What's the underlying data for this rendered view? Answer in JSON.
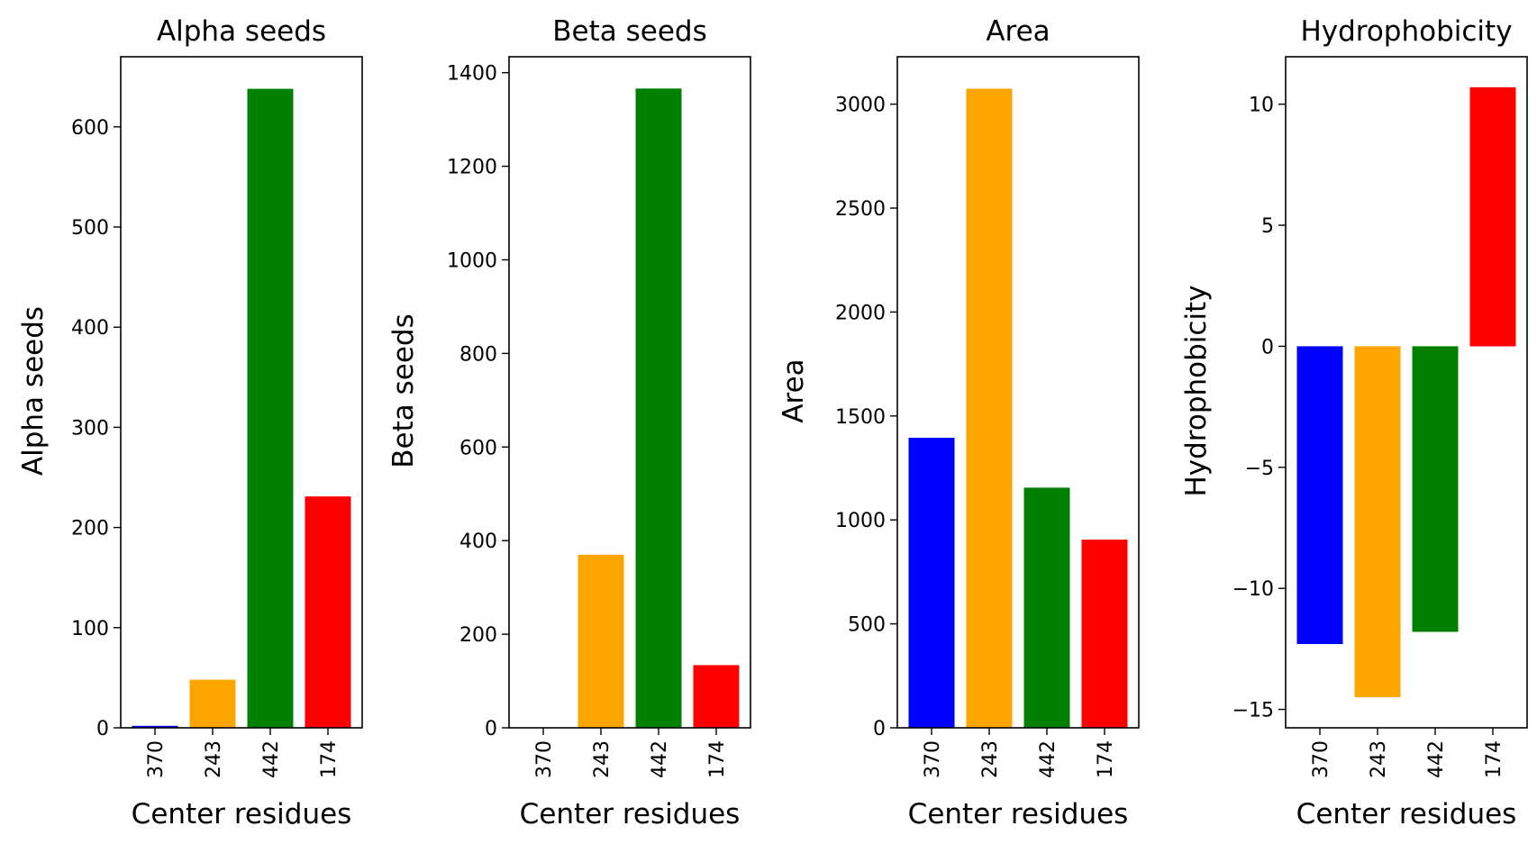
{
  "chart_data": [
    {
      "type": "bar",
      "title": "Alpha seeds",
      "xlabel": "Center residues",
      "ylabel": "Alpha seeds",
      "categories": [
        "370",
        "243",
        "442",
        "174"
      ],
      "values": [
        2,
        48,
        638,
        231
      ],
      "colors": [
        "#0000ff",
        "#ffa500",
        "#008000",
        "#ff0000"
      ],
      "ylim": [
        0,
        670
      ],
      "yticks": [
        0,
        100,
        200,
        300,
        400,
        500,
        600
      ],
      "ytick_labels": [
        "0",
        "100",
        "200",
        "300",
        "400",
        "500",
        "600"
      ],
      "grid": false
    },
    {
      "type": "bar",
      "title": "Beta seeds",
      "xlabel": "Center residues",
      "ylabel": "Beta seeds",
      "categories": [
        "370",
        "243",
        "442",
        "174"
      ],
      "values": [
        0,
        370,
        1366,
        134
      ],
      "colors": [
        "#0000ff",
        "#ffa500",
        "#008000",
        "#ff0000"
      ],
      "ylim": [
        0,
        1434
      ],
      "yticks": [
        0,
        200,
        400,
        600,
        800,
        1000,
        1200,
        1400
      ],
      "ytick_labels": [
        "0",
        "200",
        "400",
        "600",
        "800",
        "1000",
        "1200",
        "1400"
      ],
      "grid": false
    },
    {
      "type": "bar",
      "title": "Area",
      "xlabel": "Center residues",
      "ylabel": "Area",
      "categories": [
        "370",
        "243",
        "442",
        "174"
      ],
      "values": [
        1395,
        3074,
        1155,
        905
      ],
      "colors": [
        "#0000ff",
        "#ffa500",
        "#008000",
        "#ff0000"
      ],
      "ylim": [
        0,
        3228
      ],
      "yticks": [
        0,
        500,
        1000,
        1500,
        2000,
        2500,
        3000
      ],
      "ytick_labels": [
        "0",
        "500",
        "1000",
        "1500",
        "2000",
        "2500",
        "3000"
      ],
      "grid": false
    },
    {
      "type": "bar",
      "title": "Hydrophobicity",
      "xlabel": "Center residues",
      "ylabel": "Hydrophobicity",
      "categories": [
        "370",
        "243",
        "442",
        "174"
      ],
      "values": [
        -12.3,
        -14.5,
        -11.8,
        10.7
      ],
      "colors": [
        "#0000ff",
        "#ffa500",
        "#008000",
        "#ff0000"
      ],
      "ylim": [
        -15.76,
        11.96
      ],
      "yticks": [
        -15,
        -10,
        -5,
        0,
        5,
        10
      ],
      "ytick_labels": [
        "−15",
        "−10",
        "−5",
        "0",
        "5",
        "10"
      ],
      "grid": false
    }
  ]
}
